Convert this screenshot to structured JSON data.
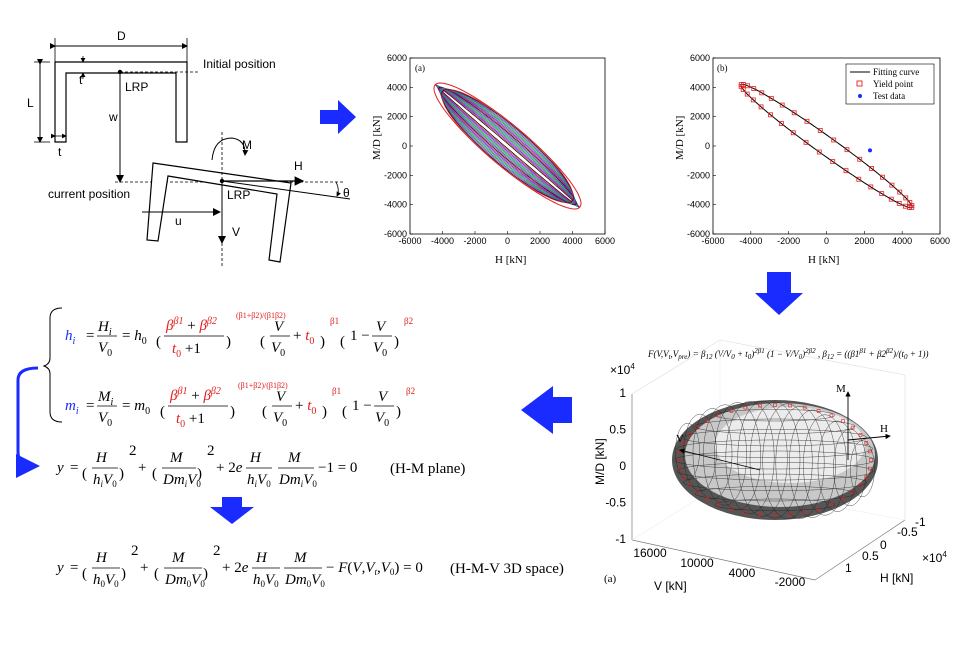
{
  "schematic": {
    "dim_D": "D",
    "dim_L": "L",
    "dim_t_top": "t",
    "dim_t_left": "t",
    "initial_position": "Initial position",
    "current_position": "current position",
    "lrp_top": "LRP",
    "lrp_bottom": "LRP",
    "w": "w",
    "u": "u",
    "M": "M",
    "H": "H",
    "V": "V",
    "theta": "θ"
  },
  "plot_a": {
    "panel": "(a)",
    "xlabel": "H [kN]",
    "ylabel": "M/D [kN]",
    "xticks": [
      "-6000",
      "-4000",
      "-2000",
      "0",
      "2000",
      "4000",
      "6000"
    ],
    "yticks": [
      "6000",
      "4000",
      "2000",
      "0",
      "-2000",
      "-4000",
      "-6000"
    ]
  },
  "plot_b": {
    "panel": "(b)",
    "xlabel": "H [kN]",
    "ylabel": "M/D [kN]",
    "xticks": [
      "-6000",
      "-4000",
      "-2000",
      "0",
      "2000",
      "4000",
      "6000"
    ],
    "yticks": [
      "6000",
      "4000",
      "2000",
      "0",
      "-2000",
      "-4000",
      "-6000"
    ],
    "legend": [
      "Fitting curve",
      "Yield point",
      "Test data"
    ]
  },
  "plot_3d": {
    "formula": "F(V,Vt,Vpre) = β12 (V/V0 + t0)^2β1 (1 − V/V0)^2β2 , β12 = ((β1^β1 + β2^β2)/(t0 + 1))^((β1+β2)/(β1β2))",
    "zscale": "×10",
    "zscale_exp": "4",
    "zlabel": "M/D [kN]",
    "zticks": [
      "1",
      "0.5",
      "0",
      "-0.5",
      "-1"
    ],
    "vlabel": "V [kN]",
    "vticks": [
      "16000",
      "10000",
      "4000",
      "-2000"
    ],
    "hlabel": "H [kN]",
    "hticks": [
      "-1",
      "-0.5",
      "0",
      "0.5",
      "1"
    ],
    "hscale": "×10",
    "hscale_exp": "4",
    "axis_M": "M",
    "axis_H": "H",
    "axis_V": "V",
    "panel": "(a)"
  },
  "equations": {
    "hm_plane": "(H-M plane)",
    "hmv_space": "(H-M-V  3D space)"
  }
}
